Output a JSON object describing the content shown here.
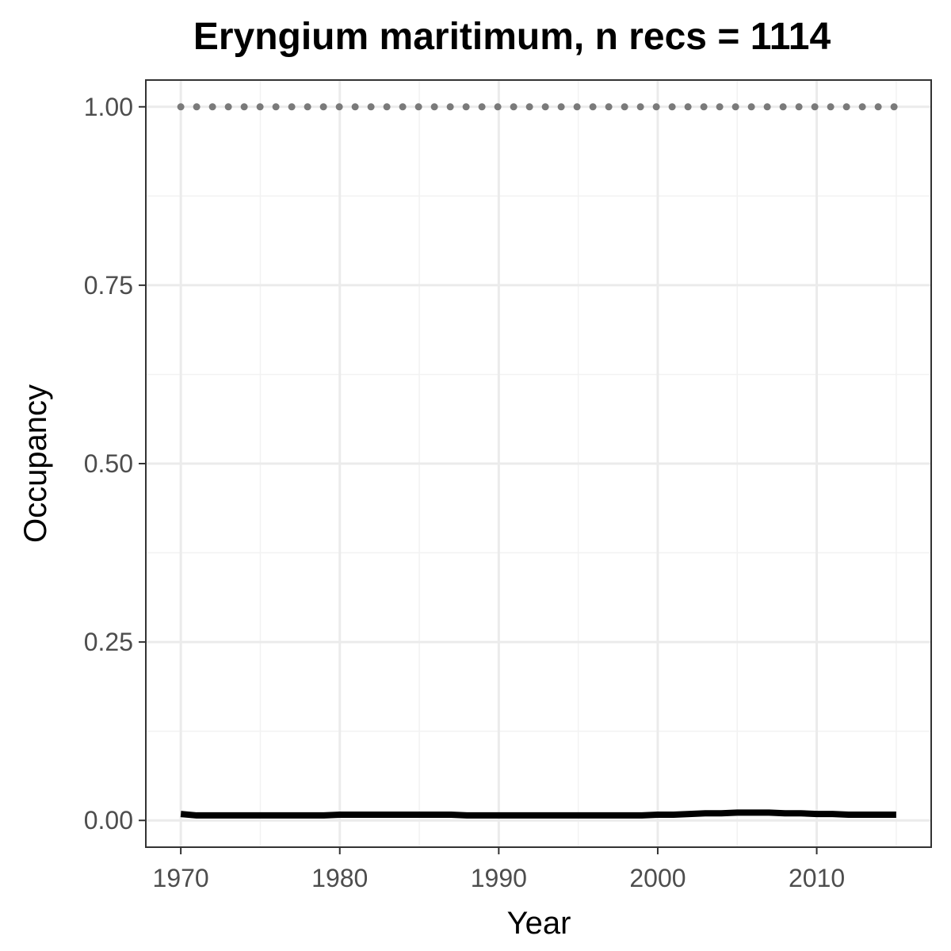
{
  "chart_data": {
    "type": "line",
    "title": "Eryngium maritimum, n recs = 1114",
    "xlabel": "Year",
    "ylabel": "Occupancy",
    "xlim": [
      1967.8,
      2017.2
    ],
    "ylim": [
      -0.0375,
      1.0375
    ],
    "x_ticks": [
      1970,
      1980,
      1990,
      2000,
      2010
    ],
    "y_ticks": [
      0,
      0.25,
      0.5,
      0.75,
      1
    ],
    "x_tick_labels": [
      "1970",
      "1980",
      "1990",
      "2000",
      "2010"
    ],
    "y_tick_labels": [
      "0.00",
      "0.25",
      "0.50",
      "0.75",
      "1.00"
    ],
    "grid": true,
    "series": [
      {
        "style": "dotted",
        "color": "#7a7a7a",
        "x": [
          1970,
          1971,
          1972,
          1973,
          1974,
          1975,
          1976,
          1977,
          1978,
          1979,
          1980,
          1981,
          1982,
          1983,
          1984,
          1985,
          1986,
          1987,
          1988,
          1989,
          1990,
          1991,
          1992,
          1993,
          1994,
          1995,
          1996,
          1997,
          1998,
          1999,
          2000,
          2001,
          2002,
          2003,
          2004,
          2005,
          2006,
          2007,
          2008,
          2009,
          2010,
          2011,
          2012,
          2013,
          2014,
          2015
        ],
        "values": [
          1,
          1,
          1,
          1,
          1,
          1,
          1,
          1,
          1,
          1,
          1,
          1,
          1,
          1,
          1,
          1,
          1,
          1,
          1,
          1,
          1,
          1,
          1,
          1,
          1,
          1,
          1,
          1,
          1,
          1,
          1,
          1,
          1,
          1,
          1,
          1,
          1,
          1,
          1,
          1,
          1,
          1,
          1,
          1,
          1,
          1
        ]
      },
      {
        "style": "solid",
        "color": "#000000",
        "x": [
          1970,
          1971,
          1972,
          1973,
          1974,
          1975,
          1976,
          1977,
          1978,
          1979,
          1980,
          1981,
          1982,
          1983,
          1984,
          1985,
          1986,
          1987,
          1988,
          1989,
          1990,
          1991,
          1992,
          1993,
          1994,
          1995,
          1996,
          1997,
          1998,
          1999,
          2000,
          2001,
          2002,
          2003,
          2004,
          2005,
          2006,
          2007,
          2008,
          2009,
          2010,
          2011,
          2012,
          2013,
          2014,
          2015
        ],
        "values": [
          0.009,
          0.007,
          0.007,
          0.007,
          0.007,
          0.007,
          0.007,
          0.007,
          0.007,
          0.007,
          0.008,
          0.008,
          0.008,
          0.008,
          0.008,
          0.008,
          0.008,
          0.008,
          0.007,
          0.007,
          0.007,
          0.007,
          0.007,
          0.007,
          0.007,
          0.007,
          0.007,
          0.007,
          0.007,
          0.007,
          0.008,
          0.008,
          0.009,
          0.01,
          0.01,
          0.011,
          0.011,
          0.011,
          0.01,
          0.01,
          0.009,
          0.009,
          0.008,
          0.008,
          0.008,
          0.008
        ]
      }
    ]
  }
}
